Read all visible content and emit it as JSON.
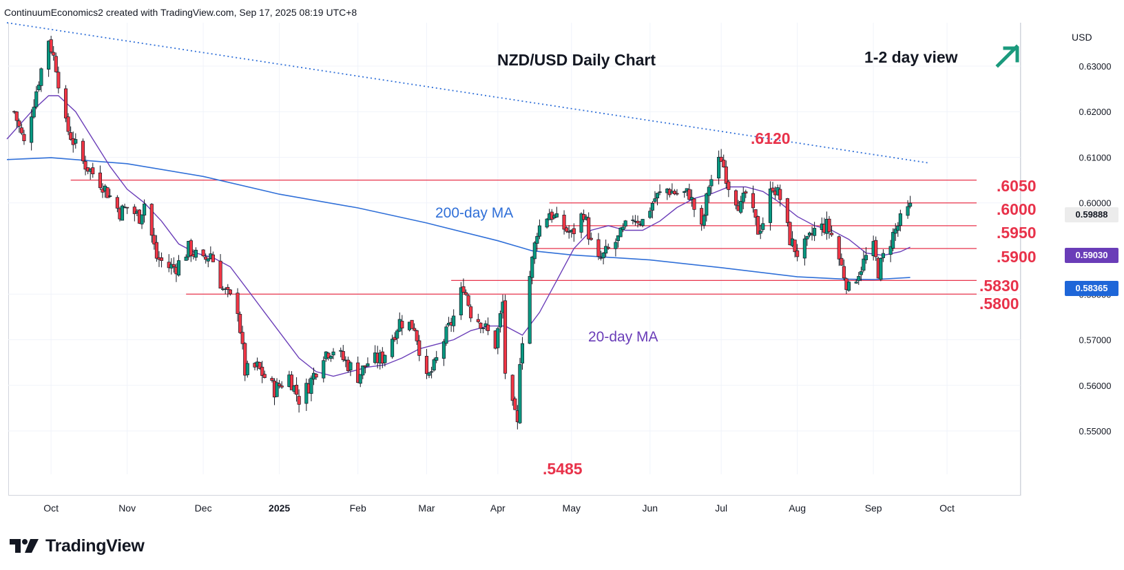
{
  "header": {
    "caption": "ContinuumEconomics2 created with TradingView.com, Sep 17, 2025 08:19 UTC+8"
  },
  "branding": {
    "logo_text": "TradingView"
  },
  "chart_data": {
    "type": "candlestick",
    "title": "NZD/USD Daily Chart",
    "view": "1-2 day view",
    "view_direction": "up",
    "currency": "USD",
    "ylim": [
      0.5405,
      0.6395
    ],
    "y_ticks": [
      {
        "v": 0.63,
        "label": "0.63000"
      },
      {
        "v": 0.62,
        "label": "0.62000"
      },
      {
        "v": 0.61,
        "label": "0.61000"
      },
      {
        "v": 0.6,
        "label": "0.60000"
      },
      {
        "v": 0.58,
        "label": "0.58000"
      },
      {
        "v": 0.57,
        "label": "0.57000"
      },
      {
        "v": 0.56,
        "label": "0.56000"
      },
      {
        "v": 0.55,
        "label": "0.55000"
      }
    ],
    "x_ticks": [
      {
        "date": "2024-10-01",
        "label": "Oct",
        "bold": false
      },
      {
        "date": "2024-11-01",
        "label": "Nov",
        "bold": false
      },
      {
        "date": "2024-12-02",
        "label": "Dec",
        "bold": false
      },
      {
        "date": "2025-01-02",
        "label": "2025",
        "bold": true
      },
      {
        "date": "2025-02-03",
        "label": "Feb",
        "bold": false
      },
      {
        "date": "2025-03-03",
        "label": "Mar",
        "bold": false
      },
      {
        "date": "2025-04-01",
        "label": "Apr",
        "bold": false
      },
      {
        "date": "2025-05-01",
        "label": "May",
        "bold": false
      },
      {
        "date": "2025-06-02",
        "label": "Jun",
        "bold": false
      },
      {
        "date": "2025-07-01",
        "label": "Jul",
        "bold": false
      },
      {
        "date": "2025-08-01",
        "label": "Aug",
        "bold": false
      },
      {
        "date": "2025-09-01",
        "label": "Sep",
        "bold": false
      },
      {
        "date": "2025-10-01",
        "label": "Oct",
        "bold": false
      }
    ],
    "price_tags": [
      {
        "label": "0.59888",
        "value": 0.59888,
        "kind": "last"
      },
      {
        "label": "0.59030",
        "value": 0.5903,
        "kind": "ma20"
      },
      {
        "label": "0.58365",
        "value": 0.58365,
        "kind": "ma200"
      }
    ],
    "levels": [
      {
        "label": ".6050",
        "value": 0.605,
        "from": "2024-10-09"
      },
      {
        "label": ".6000",
        "value": 0.6,
        "from": "2025-04-22"
      },
      {
        "label": ".5950",
        "value": 0.595,
        "from": "2025-04-21"
      },
      {
        "label": ".5900",
        "value": 0.59,
        "from": "2025-04-16"
      },
      {
        "label": ".5830",
        "value": 0.583,
        "from": "2025-03-13"
      },
      {
        "label": ".5800",
        "value": 0.58,
        "from": "2024-11-25"
      }
    ],
    "annotations": [
      {
        "label": ".6120",
        "date": "2025-06-30",
        "value": 0.612
      },
      {
        "label": ".5485",
        "date": "2025-04-09",
        "value": 0.5485
      }
    ],
    "trendline": {
      "start": {
        "date": "2024-09-13",
        "value": 0.6395
      },
      "end": {
        "date": "2025-09-23",
        "value": 0.6088
      },
      "style": "dotted"
    },
    "ma_labels": {
      "ma200": "200-day MA",
      "ma20": "20-day MA"
    },
    "anchors": [
      [
        "2024-09-16",
        0.62
      ],
      [
        "2024-09-20",
        0.613
      ],
      [
        "2024-09-26",
        0.627
      ],
      [
        "2024-09-30",
        0.636
      ],
      [
        "2024-10-03",
        0.63
      ],
      [
        "2024-10-07",
        0.617
      ],
      [
        "2024-10-14",
        0.609
      ],
      [
        "2024-10-22",
        0.604
      ],
      [
        "2024-10-29",
        0.598
      ],
      [
        "2024-11-01",
        0.599
      ],
      [
        "2024-11-06",
        0.597
      ],
      [
        "2024-11-08",
        0.6
      ],
      [
        "2024-11-13",
        0.588
      ],
      [
        "2024-11-18",
        0.586
      ],
      [
        "2024-11-21",
        0.586
      ],
      [
        "2024-11-26",
        0.59
      ],
      [
        "2024-12-02",
        0.587
      ],
      [
        "2024-12-05",
        0.589
      ],
      [
        "2024-12-10",
        0.581
      ],
      [
        "2024-12-16",
        0.577
      ],
      [
        "2024-12-19",
        0.563
      ],
      [
        "2024-12-24",
        0.564
      ],
      [
        "2024-12-31",
        0.559
      ],
      [
        "2025-01-06",
        0.562
      ],
      [
        "2025-01-10",
        0.557
      ],
      [
        "2025-01-14",
        0.56
      ],
      [
        "2025-01-20",
        0.567
      ],
      [
        "2025-01-24",
        0.568
      ],
      [
        "2025-01-31",
        0.564
      ],
      [
        "2025-02-03",
        0.562
      ],
      [
        "2025-02-07",
        0.565
      ],
      [
        "2025-02-13",
        0.566
      ],
      [
        "2025-02-20",
        0.574
      ],
      [
        "2025-02-26",
        0.573
      ],
      [
        "2025-03-03",
        0.561
      ],
      [
        "2025-03-06",
        0.564
      ],
      [
        "2025-03-10",
        0.57
      ],
      [
        "2025-03-14",
        0.575
      ],
      [
        "2025-03-18",
        0.582
      ],
      [
        "2025-03-21",
        0.576
      ],
      [
        "2025-03-25",
        0.574
      ],
      [
        "2025-03-31",
        0.569
      ],
      [
        "2025-04-03",
        0.578
      ],
      [
        "2025-04-04",
        0.563
      ],
      [
        "2025-04-07",
        0.555
      ],
      [
        "2025-04-09",
        0.551
      ],
      [
        "2025-04-10",
        0.566
      ],
      [
        "2025-04-14",
        0.584
      ],
      [
        "2025-04-17",
        0.594
      ],
      [
        "2025-04-22",
        0.598
      ],
      [
        "2025-04-25",
        0.596
      ],
      [
        "2025-05-01",
        0.593
      ],
      [
        "2025-05-06",
        0.598
      ],
      [
        "2025-05-09",
        0.591
      ],
      [
        "2025-05-12",
        0.587
      ],
      [
        "2025-05-15",
        0.589
      ],
      [
        "2025-05-20",
        0.592
      ],
      [
        "2025-05-26",
        0.597
      ],
      [
        "2025-05-30",
        0.596
      ],
      [
        "2025-06-04",
        0.601
      ],
      [
        "2025-06-09",
        0.603
      ],
      [
        "2025-06-13",
        0.602
      ],
      [
        "2025-06-18",
        0.602
      ],
      [
        "2025-06-23",
        0.594
      ],
      [
        "2025-06-26",
        0.604
      ],
      [
        "2025-07-01",
        0.61
      ],
      [
        "2025-07-04",
        0.604
      ],
      [
        "2025-07-09",
        0.599
      ],
      [
        "2025-07-11",
        0.602
      ],
      [
        "2025-07-16",
        0.594
      ],
      [
        "2025-07-18",
        0.596
      ],
      [
        "2025-07-22",
        0.604
      ],
      [
        "2025-07-25",
        0.601
      ],
      [
        "2025-07-29",
        0.592
      ],
      [
        "2025-08-01",
        0.589
      ],
      [
        "2025-08-05",
        0.591
      ],
      [
        "2025-08-08",
        0.594
      ],
      [
        "2025-08-13",
        0.595
      ],
      [
        "2025-08-15",
        0.593
      ],
      [
        "2025-08-19",
        0.586
      ],
      [
        "2025-08-22",
        0.581
      ],
      [
        "2025-08-26",
        0.585
      ],
      [
        "2025-08-29",
        0.588
      ],
      [
        "2025-09-01",
        0.59
      ],
      [
        "2025-09-03",
        0.585
      ],
      [
        "2025-09-05",
        0.588
      ],
      [
        "2025-09-09",
        0.593
      ],
      [
        "2025-09-12",
        0.596
      ],
      [
        "2025-09-16",
        0.5989
      ]
    ],
    "ma20": [
      [
        "2024-09-13",
        0.614
      ],
      [
        "2024-09-23",
        0.62
      ],
      [
        "2024-09-30",
        0.6235
      ],
      [
        "2024-10-04",
        0.6235
      ],
      [
        "2024-10-11",
        0.62
      ],
      [
        "2024-10-18",
        0.614
      ],
      [
        "2024-10-25",
        0.608
      ],
      [
        "2024-11-01",
        0.603
      ],
      [
        "2024-11-08",
        0.6
      ],
      [
        "2024-11-15",
        0.596
      ],
      [
        "2024-11-22",
        0.591
      ],
      [
        "2024-11-29",
        0.589
      ],
      [
        "2024-12-06",
        0.588
      ],
      [
        "2024-12-13",
        0.586
      ],
      [
        "2024-12-20",
        0.581
      ],
      [
        "2024-12-27",
        0.576
      ],
      [
        "2025-01-03",
        0.571
      ],
      [
        "2025-01-10",
        0.566
      ],
      [
        "2025-01-17",
        0.563
      ],
      [
        "2025-01-24",
        0.562
      ],
      [
        "2025-01-31",
        0.563
      ],
      [
        "2025-02-07",
        0.564
      ],
      [
        "2025-02-14",
        0.5645
      ],
      [
        "2025-02-21",
        0.566
      ],
      [
        "2025-02-28",
        0.568
      ],
      [
        "2025-03-07",
        0.569
      ],
      [
        "2025-03-14",
        0.57
      ],
      [
        "2025-03-21",
        0.572
      ],
      [
        "2025-03-28",
        0.573
      ],
      [
        "2025-04-04",
        0.573
      ],
      [
        "2025-04-11",
        0.571
      ],
      [
        "2025-04-18",
        0.576
      ],
      [
        "2025-04-25",
        0.583
      ],
      [
        "2025-05-02",
        0.59
      ],
      [
        "2025-05-09",
        0.594
      ],
      [
        "2025-05-16",
        0.595
      ],
      [
        "2025-05-23",
        0.594
      ],
      [
        "2025-05-30",
        0.594
      ],
      [
        "2025-06-06",
        0.596
      ],
      [
        "2025-06-13",
        0.599
      ],
      [
        "2025-06-20",
        0.601
      ],
      [
        "2025-06-27",
        0.602
      ],
      [
        "2025-07-04",
        0.6035
      ],
      [
        "2025-07-11",
        0.6035
      ],
      [
        "2025-07-18",
        0.6025
      ],
      [
        "2025-07-25",
        0.6
      ],
      [
        "2025-08-01",
        0.597
      ],
      [
        "2025-08-08",
        0.595
      ],
      [
        "2025-08-15",
        0.594
      ],
      [
        "2025-08-22",
        0.592
      ],
      [
        "2025-08-29",
        0.589
      ],
      [
        "2025-09-05",
        0.5885
      ],
      [
        "2025-09-12",
        0.5893
      ],
      [
        "2025-09-16",
        0.5903
      ]
    ],
    "ma200": [
      [
        "2024-09-13",
        0.6095
      ],
      [
        "2024-10-01",
        0.6099
      ],
      [
        "2024-11-01",
        0.6086
      ],
      [
        "2024-12-02",
        0.6058
      ],
      [
        "2025-01-02",
        0.6019
      ],
      [
        "2025-02-03",
        0.5989
      ],
      [
        "2025-03-03",
        0.5956
      ],
      [
        "2025-04-01",
        0.5917
      ],
      [
        "2025-04-15",
        0.5895
      ],
      [
        "2025-05-01",
        0.5886
      ],
      [
        "2025-06-02",
        0.5875
      ],
      [
        "2025-07-01",
        0.5858
      ],
      [
        "2025-08-01",
        0.5838
      ],
      [
        "2025-08-20",
        0.5833
      ],
      [
        "2025-09-01",
        0.5832
      ],
      [
        "2025-09-16",
        0.58365
      ]
    ]
  }
}
